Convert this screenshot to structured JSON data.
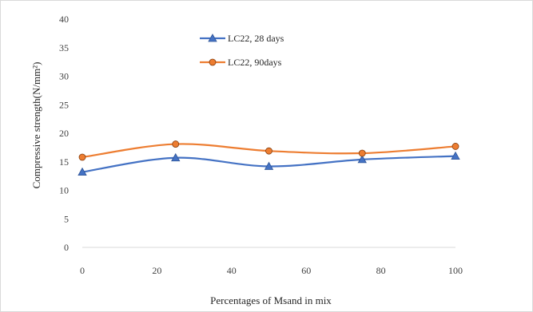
{
  "chart_data": {
    "type": "line",
    "xlabel": "Percentages of Msand in mix",
    "ylabel": "Compressive strength(N/mm²)",
    "x": [
      0,
      25,
      50,
      75,
      100
    ],
    "xlim": [
      0,
      100
    ],
    "ylim": [
      0,
      40
    ],
    "xticks": [
      0,
      20,
      40,
      60,
      80,
      100
    ],
    "yticks": [
      0,
      5,
      10,
      15,
      20,
      25,
      30,
      35,
      40
    ],
    "grid": false,
    "legend_position": "top-left",
    "series": [
      {
        "name": "LC22, 28 days",
        "values": [
          13.2,
          15.7,
          14.2,
          15.4,
          16.0
        ],
        "color": "#4472c4",
        "marker": "triangle"
      },
      {
        "name": "LC22, 90days",
        "values": [
          15.8,
          18.1,
          16.9,
          16.5,
          17.7
        ],
        "color": "#ed7d31",
        "marker": "circle"
      }
    ]
  }
}
